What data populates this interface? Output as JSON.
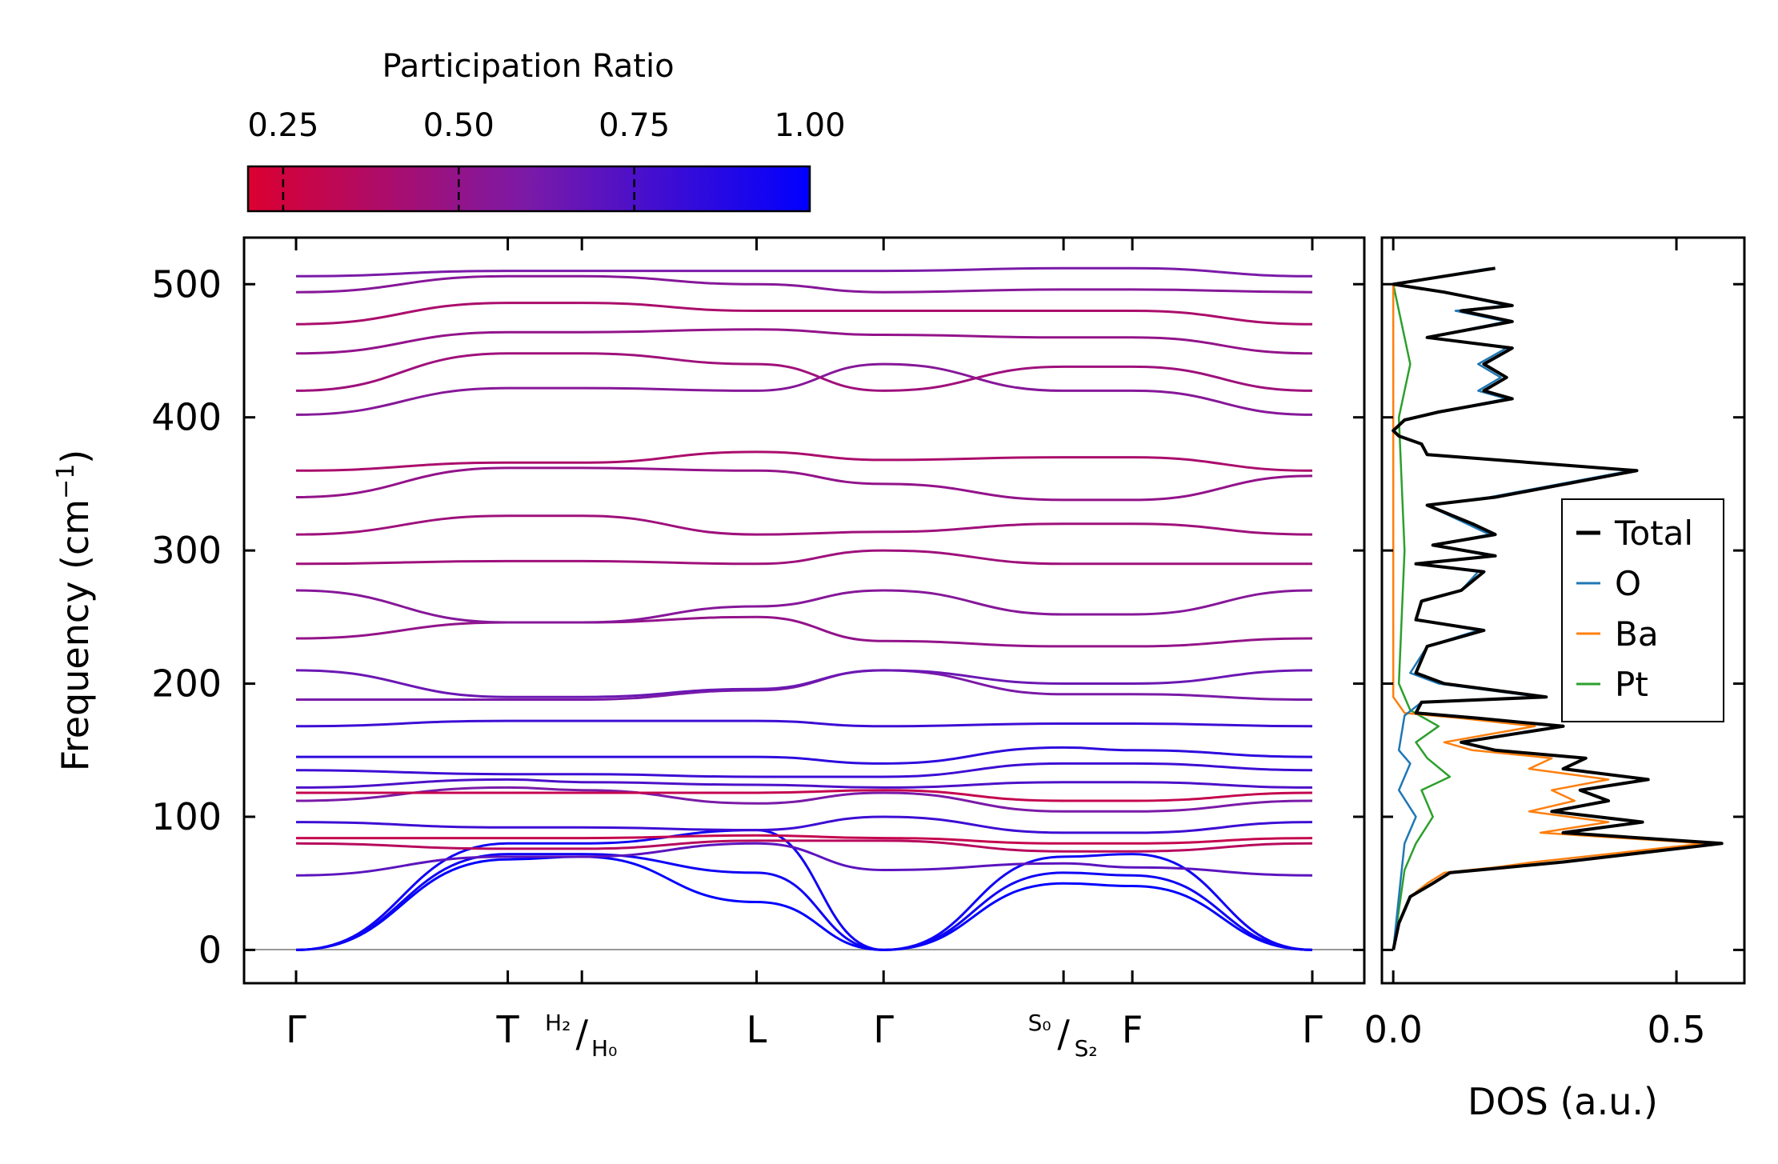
{
  "chart_data": [
    {
      "type": "line",
      "name": "phonon-dispersion",
      "ylabel": "Frequency (cm",
      "ylabel_sup": "−1",
      "ylabel_close": ")",
      "ylim": [
        -25,
        535
      ],
      "yticks": [
        0,
        100,
        200,
        300,
        400,
        500
      ],
      "path_points": [
        {
          "label": "Γ",
          "pos": 0.0
        },
        {
          "label": "T",
          "pos": 0.2
        },
        {
          "label_sup": "H₂",
          "label_sub": "H₀",
          "pos": 0.27
        },
        {
          "label": "L",
          "pos": 0.435
        },
        {
          "label": "Γ",
          "pos": 0.555
        },
        {
          "label_sup": "S₀",
          "label_sub": "S₂",
          "pos": 0.725
        },
        {
          "label": "F",
          "pos": 0.79
        },
        {
          "label": "Γ",
          "pos": 0.96
        }
      ],
      "x_knots": [
        0.0,
        0.2,
        0.27,
        0.435,
        0.555,
        0.725,
        0.79,
        0.96
      ],
      "bands": [
        {
          "f": [
            0,
            68,
            70,
            36,
            0,
            50,
            48,
            0
          ],
          "pr": 1.0
        },
        {
          "f": [
            0,
            72,
            72,
            58,
            0,
            58,
            56,
            0
          ],
          "pr": 0.95
        },
        {
          "f": [
            0,
            80,
            80,
            90,
            0,
            70,
            72,
            0
          ],
          "pr": 0.95
        },
        {
          "f": [
            56,
            70,
            70,
            80,
            60,
            65,
            62,
            56
          ],
          "pr": 0.7
        },
        {
          "f": [
            80,
            76,
            76,
            82,
            82,
            74,
            74,
            80
          ],
          "pr": 0.35
        },
        {
          "f": [
            84,
            84,
            84,
            86,
            84,
            80,
            80,
            84
          ],
          "pr": 0.3
        },
        {
          "f": [
            96,
            92,
            92,
            90,
            100,
            88,
            88,
            96
          ],
          "pr": 0.8
        },
        {
          "f": [
            112,
            122,
            120,
            110,
            118,
            104,
            104,
            112
          ],
          "pr": 0.6
        },
        {
          "f": [
            118,
            118,
            118,
            118,
            120,
            112,
            112,
            118
          ],
          "pr": 0.3
        },
        {
          "f": [
            122,
            128,
            126,
            124,
            122,
            126,
            126,
            122
          ],
          "pr": 0.75
        },
        {
          "f": [
            135,
            132,
            132,
            130,
            130,
            140,
            140,
            135
          ],
          "pr": 0.8
        },
        {
          "f": [
            145,
            145,
            145,
            145,
            140,
            152,
            150,
            145
          ],
          "pr": 0.85
        },
        {
          "f": [
            168,
            172,
            172,
            172,
            168,
            170,
            170,
            168
          ],
          "pr": 0.8
        },
        {
          "f": [
            188,
            188,
            188,
            195,
            210,
            192,
            192,
            188
          ],
          "pr": 0.6
        },
        {
          "f": [
            210,
            190,
            190,
            196,
            210,
            200,
            200,
            210
          ],
          "pr": 0.65
        },
        {
          "f": [
            234,
            246,
            246,
            250,
            232,
            228,
            228,
            234
          ],
          "pr": 0.5
        },
        {
          "f": [
            270,
            246,
            246,
            258,
            270,
            252,
            252,
            270
          ],
          "pr": 0.55
        },
        {
          "f": [
            290,
            292,
            292,
            290,
            300,
            290,
            290,
            290
          ],
          "pr": 0.45
        },
        {
          "f": [
            312,
            326,
            326,
            312,
            314,
            320,
            320,
            312
          ],
          "pr": 0.45
        },
        {
          "f": [
            340,
            362,
            362,
            360,
            350,
            338,
            338,
            356
          ],
          "pr": 0.5
        },
        {
          "f": [
            360,
            366,
            366,
            374,
            368,
            370,
            370,
            360
          ],
          "pr": 0.4
        },
        {
          "f": [
            402,
            422,
            422,
            420,
            440,
            420,
            420,
            402
          ],
          "pr": 0.55
        },
        {
          "f": [
            420,
            448,
            448,
            440,
            420,
            438,
            438,
            420
          ],
          "pr": 0.45
        },
        {
          "f": [
            448,
            464,
            464,
            466,
            462,
            460,
            460,
            448
          ],
          "pr": 0.5
        },
        {
          "f": [
            470,
            486,
            486,
            480,
            480,
            480,
            480,
            470
          ],
          "pr": 0.4
        },
        {
          "f": [
            494,
            506,
            506,
            500,
            494,
            496,
            496,
            494
          ],
          "pr": 0.55
        },
        {
          "f": [
            506,
            510,
            510,
            510,
            510,
            512,
            512,
            506
          ],
          "pr": 0.6
        }
      ]
    },
    {
      "type": "line",
      "name": "density-of-states",
      "xlabel": "DOS (a.u.)",
      "xlim": [
        -0.02,
        0.62
      ],
      "xticks": [
        {
          "v": 0.0,
          "label": "0.0"
        },
        {
          "v": 0.5,
          "label": "0.5"
        }
      ],
      "ylim": [
        -25,
        535
      ],
      "legend_position": "right",
      "series": [
        {
          "name": "Total",
          "color": "#000000",
          "points": [
            [
              0,
              0
            ],
            [
              0.01,
              20
            ],
            [
              0.03,
              40
            ],
            [
              0.07,
              50
            ],
            [
              0.1,
              58
            ],
            [
              0.2,
              62
            ],
            [
              0.3,
              66
            ],
            [
              0.58,
              80
            ],
            [
              0.3,
              88
            ],
            [
              0.44,
              96
            ],
            [
              0.28,
              104
            ],
            [
              0.38,
              112
            ],
            [
              0.33,
              120
            ],
            [
              0.45,
              128
            ],
            [
              0.3,
              136
            ],
            [
              0.34,
              144
            ],
            [
              0.18,
              150
            ],
            [
              0.12,
              156
            ],
            [
              0.3,
              168
            ],
            [
              0.15,
              174
            ],
            [
              0.04,
              178
            ],
            [
              0.05,
              186
            ],
            [
              0.27,
              190
            ],
            [
              0.09,
              200
            ],
            [
              0.04,
              208
            ],
            [
              0.06,
              228
            ],
            [
              0.16,
              240
            ],
            [
              0.04,
              248
            ],
            [
              0.05,
              262
            ],
            [
              0.12,
              270
            ],
            [
              0.16,
              284
            ],
            [
              0.04,
              290
            ],
            [
              0.18,
              296
            ],
            [
              0.07,
              304
            ],
            [
              0.18,
              312
            ],
            [
              0.14,
              320
            ],
            [
              0.06,
              334
            ],
            [
              0.18,
              340
            ],
            [
              0.43,
              360
            ],
            [
              0.06,
              372
            ],
            [
              0.05,
              380
            ],
            [
              0.01,
              386
            ],
            [
              0.0,
              390
            ],
            [
              0.02,
              398
            ],
            [
              0.08,
              404
            ],
            [
              0.21,
              414
            ],
            [
              0.16,
              420
            ],
            [
              0.2,
              430
            ],
            [
              0.16,
              440
            ],
            [
              0.21,
              452
            ],
            [
              0.06,
              460
            ],
            [
              0.21,
              472
            ],
            [
              0.12,
              480
            ],
            [
              0.21,
              484
            ],
            [
              0.09,
              494
            ],
            [
              0.0,
              500
            ],
            [
              0.18,
              512
            ]
          ]
        },
        {
          "name": "O",
          "color": "#1f77b4",
          "points": [
            [
              0,
              0
            ],
            [
              0.01,
              40
            ],
            [
              0.02,
              80
            ],
            [
              0.04,
              100
            ],
            [
              0.01,
              120
            ],
            [
              0.03,
              140
            ],
            [
              0.01,
              150
            ],
            [
              0.02,
              176
            ],
            [
              0.05,
              186
            ],
            [
              0.26,
              190
            ],
            [
              0.08,
              200
            ],
            [
              0.03,
              208
            ],
            [
              0.06,
              228
            ],
            [
              0.15,
              240
            ],
            [
              0.04,
              248
            ],
            [
              0.05,
              262
            ],
            [
              0.12,
              270
            ],
            [
              0.15,
              284
            ],
            [
              0.04,
              290
            ],
            [
              0.17,
              296
            ],
            [
              0.07,
              304
            ],
            [
              0.17,
              312
            ],
            [
              0.13,
              320
            ],
            [
              0.06,
              334
            ],
            [
              0.17,
              340
            ],
            [
              0.42,
              360
            ],
            [
              0.06,
              372
            ],
            [
              0.05,
              380
            ],
            [
              0.01,
              386
            ],
            [
              0.0,
              390
            ],
            [
              0.02,
              398
            ],
            [
              0.08,
              404
            ],
            [
              0.2,
              414
            ],
            [
              0.15,
              420
            ],
            [
              0.19,
              430
            ],
            [
              0.15,
              440
            ],
            [
              0.2,
              452
            ],
            [
              0.06,
              460
            ],
            [
              0.2,
              472
            ],
            [
              0.11,
              480
            ],
            [
              0.2,
              484
            ],
            [
              0.09,
              494
            ],
            [
              0.0,
              500
            ],
            [
              0.17,
              512
            ]
          ]
        },
        {
          "name": "Ba",
          "color": "#ff7f0e",
          "points": [
            [
              0,
              0
            ],
            [
              0.01,
              20
            ],
            [
              0.03,
              40
            ],
            [
              0.06,
              50
            ],
            [
              0.09,
              58
            ],
            [
              0.18,
              62
            ],
            [
              0.25,
              66
            ],
            [
              0.55,
              80
            ],
            [
              0.26,
              88
            ],
            [
              0.38,
              96
            ],
            [
              0.24,
              104
            ],
            [
              0.32,
              112
            ],
            [
              0.28,
              120
            ],
            [
              0.38,
              128
            ],
            [
              0.24,
              136
            ],
            [
              0.28,
              144
            ],
            [
              0.14,
              150
            ],
            [
              0.09,
              156
            ],
            [
              0.25,
              168
            ],
            [
              0.12,
              174
            ],
            [
              0.02,
              178
            ],
            [
              0.0,
              190
            ],
            [
              0.0,
              500
            ]
          ]
        },
        {
          "name": "Pt",
          "color": "#2ca02c",
          "points": [
            [
              0,
              0
            ],
            [
              0.01,
              30
            ],
            [
              0.02,
              60
            ],
            [
              0.04,
              80
            ],
            [
              0.07,
              100
            ],
            [
              0.05,
              120
            ],
            [
              0.1,
              130
            ],
            [
              0.06,
              144
            ],
            [
              0.04,
              156
            ],
            [
              0.08,
              168
            ],
            [
              0.03,
              180
            ],
            [
              0.01,
              200
            ],
            [
              0.02,
              300
            ],
            [
              0.01,
              400
            ],
            [
              0.03,
              440
            ],
            [
              0.0,
              500
            ]
          ]
        }
      ]
    }
  ],
  "colorbar": {
    "title": "Participation Ratio",
    "range": [
      0.2,
      1.0
    ],
    "ticks": [
      {
        "v": 0.25,
        "label": "0.25"
      },
      {
        "v": 0.5,
        "label": "0.50"
      },
      {
        "v": 0.75,
        "label": "0.75"
      },
      {
        "v": 1.0,
        "label": "1.00"
      }
    ],
    "color_low": "#dc0030",
    "color_mid": "#7a1aa8",
    "color_high": "#0000ff"
  }
}
